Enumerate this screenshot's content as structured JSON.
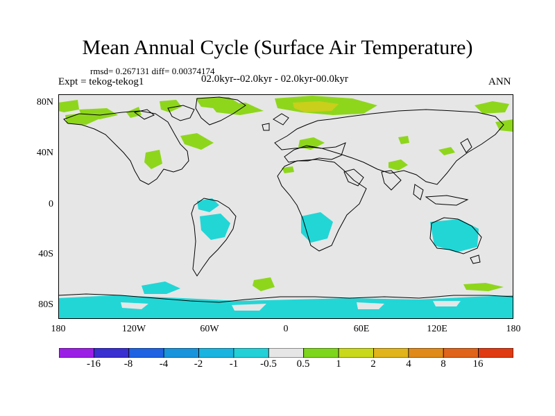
{
  "header": {
    "title": "Mean Annual Cycle (Surface Air Temperature)",
    "stats": "rmsd= 0.267131 diff= 0.00374174",
    "experiment": "Expt = tekog-tekog1",
    "period": "02.0kyr--02.0kyr - 02.0kyr-00.0kyr",
    "season": "ANN"
  },
  "map": {
    "background_color": "#e6e6e6",
    "lat_labels": [
      "80N",
      "40N",
      "0",
      "40S",
      "80S"
    ],
    "lon_labels": [
      "180",
      "120W",
      "60W",
      "0",
      "60E",
      "120E",
      "180"
    ],
    "lat_values": [
      80,
      40,
      0,
      -40,
      -80
    ],
    "lon_values": [
      -180,
      -120,
      -60,
      0,
      60,
      120,
      180
    ],
    "lat_range": [
      -90,
      90
    ],
    "lon_range": [
      -180,
      180
    ]
  },
  "colorbar": {
    "labels": [
      "-16",
      "-8",
      "-4",
      "-2",
      "-1",
      "-0.5",
      "0.5",
      "1",
      "2",
      "4",
      "8",
      "16"
    ],
    "colors": [
      "#9c1fe6",
      "#3a2fd0",
      "#1f63e3",
      "#1894dc",
      "#1ab4e0",
      "#22d0d8",
      "#e6e6e6",
      "#7ed61c",
      "#c9d81a",
      "#e0b41a",
      "#e08a1a",
      "#e0641a",
      "#e03a12"
    ]
  }
}
